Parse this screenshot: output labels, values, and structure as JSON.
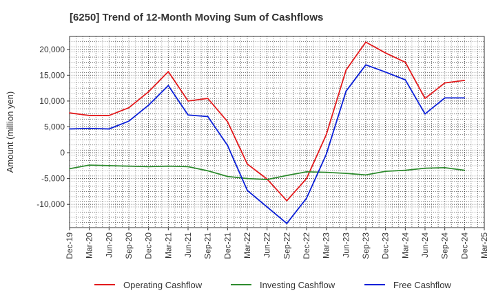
{
  "chart_data": {
    "type": "line",
    "title": "[6250]  Trend of 12-Month Moving Sum of Cashflows",
    "xlabel": "",
    "ylabel": "Amount (million yen)",
    "ylim": [
      -14500,
      22500
    ],
    "yticks": [
      -10000,
      -5000,
      0,
      5000,
      10000,
      15000,
      20000
    ],
    "ytick_labels": [
      "-10,000",
      "-5,000",
      "0",
      "5,000",
      "10,000",
      "15,000",
      "20,000"
    ],
    "categories": [
      "Dec-19",
      "Mar-20",
      "Jun-20",
      "Sep-20",
      "Dec-20",
      "Mar-21",
      "Jun-21",
      "Sep-21",
      "Dec-21",
      "Mar-22",
      "Jun-22",
      "Sep-22",
      "Dec-22",
      "Mar-23",
      "Jun-23",
      "Sep-23",
      "Dec-23",
      "Mar-24",
      "Jun-24",
      "Sep-24",
      "Dec-24",
      "Mar-25"
    ],
    "grid": true,
    "legend_position": "bottom",
    "series": [
      {
        "name": "Operating Cashflow",
        "color": "#e31a1c",
        "values": [
          7700,
          7200,
          7200,
          8700,
          11800,
          15700,
          10000,
          10500,
          6000,
          -2200,
          -5100,
          -9300,
          -5000,
          3500,
          16000,
          21400,
          19300,
          17500,
          10500,
          13500,
          14000,
          null
        ]
      },
      {
        "name": "Investing Cashflow",
        "color": "#2e8b2e",
        "values": [
          -3100,
          -2400,
          -2500,
          -2600,
          -2700,
          -2600,
          -2700,
          -3500,
          -4600,
          -5000,
          -5200,
          -4400,
          -3700,
          -3800,
          -4000,
          -4300,
          -3600,
          -3400,
          -3000,
          -2900,
          -3400,
          null
        ]
      },
      {
        "name": "Free Cashflow",
        "color": "#0a1fd8",
        "values": [
          4600,
          4700,
          4600,
          6100,
          9200,
          13000,
          7300,
          7000,
          1400,
          -7300,
          -10500,
          -13700,
          -8800,
          -300,
          11900,
          17000,
          15600,
          14100,
          7500,
          10600,
          10600,
          null
        ]
      }
    ]
  }
}
